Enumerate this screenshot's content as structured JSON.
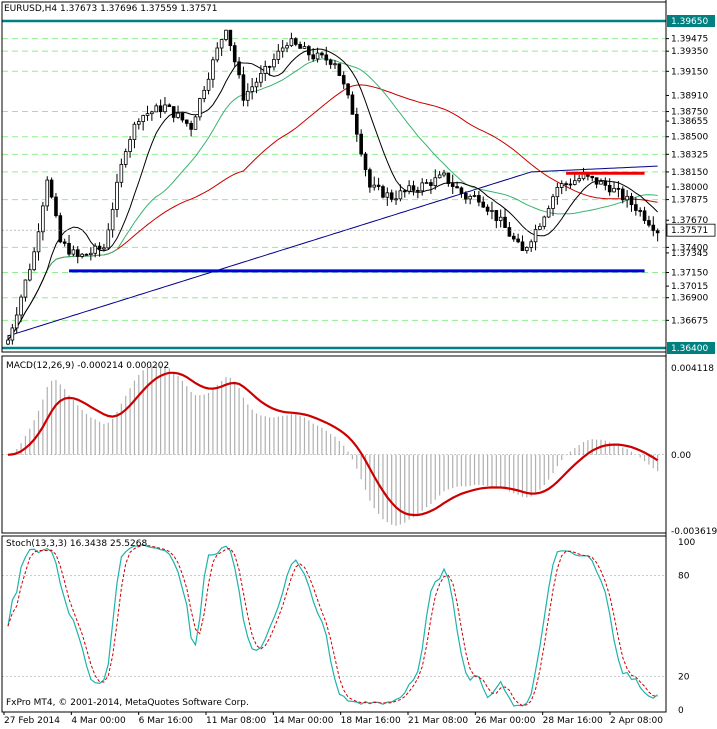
{
  "main_header": {
    "symbol": "EURUSD,H4",
    "open": "1.37673",
    "high": "1.37696",
    "low": "1.37559",
    "close": "1.37571"
  },
  "macd_title": "MACD(12,26,9) -0.000214 0.000202",
  "stoch_title": "Stoch(13,3,3) 16.3438 25.5268",
  "copyright": "FxPro MT4, © 2001-2014, MetaQuotes Software Corp.",
  "colors": {
    "background": "#ffffff",
    "frame": "#000000",
    "support_resistance": "#008080",
    "level_line": "#90ee90",
    "candle": "#000000",
    "ma_fast": "#000000",
    "ma_green": "#3cb371",
    "ma_red": "#cc0000",
    "ma_blue": "#00008b",
    "blue_support": "#0000dd",
    "red_resistance": "#ee0000",
    "macd_hist": "#b0b0b0",
    "macd_signal": "#cc0000",
    "stoch_main": "#20b2aa",
    "stoch_signal": "#cc0000",
    "current_price_box": "#ffffff"
  },
  "chart_data": {
    "type": "candlestick",
    "timeframe": "H4",
    "x_tick_labels": [
      "27 Feb 2014",
      "4 Mar 00:00",
      "6 Mar 16:00",
      "11 Mar 08:00",
      "14 Mar 00:00",
      "18 Mar 16:00",
      "21 Mar 08:00",
      "26 Mar 00:00",
      "28 Mar 16:00",
      "2 Apr 08:00"
    ],
    "price_scale_labels": [
      "1.39650",
      "1.39475",
      "1.39350",
      "1.39150",
      "1.38910",
      "1.38750",
      "1.38655",
      "1.38500",
      "1.38325",
      "1.38150",
      "1.38000",
      "1.37875",
      "1.37670",
      "1.37571",
      "1.37400",
      "1.37345",
      "1.37150",
      "1.37015",
      "1.36900",
      "1.36675",
      "1.36400"
    ],
    "highlighted_levels": [
      "1.39650",
      "1.36400"
    ],
    "current_price": "1.37571",
    "y_range": [
      1.364,
      1.3965
    ],
    "horizontal_levels": [
      1.3965,
      1.39475,
      1.3935,
      1.3915,
      1.3875,
      1.385,
      1.38325,
      1.3815,
      1.37875,
      1.374,
      1.3715,
      1.369,
      1.36675,
      1.364
    ],
    "blue_support_line": {
      "price": 1.37166,
      "from_bar": 14,
      "to_bar": 146
    },
    "red_resistance_line": {
      "price": 1.38137,
      "from_bar": 128,
      "to_bar": 146
    },
    "macd": {
      "name": "MACD(12,26,9)",
      "main": -0.000214,
      "signal": 0.000202,
      "scale_labels": [
        "0.004118",
        "0.00",
        "-0.003619"
      ],
      "y_range": [
        -0.003619,
        0.004118
      ]
    },
    "stochastic": {
      "name": "Stoch(13,3,3)",
      "main": 16.3438,
      "signal": 25.5268,
      "scale_labels": [
        "100",
        "80",
        "20",
        "0"
      ],
      "levels": [
        80,
        20
      ],
      "y_range": [
        0,
        100
      ]
    }
  }
}
